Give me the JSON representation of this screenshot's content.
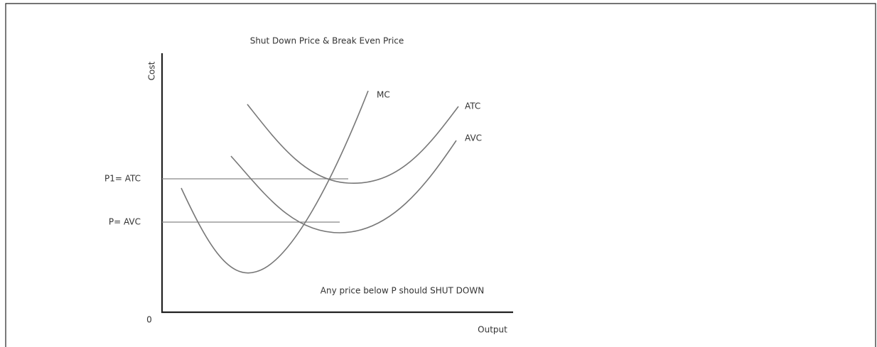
{
  "title": "Shut Down Price & Break Even Price",
  "y_axis_label": "Cost",
  "x_axis_label": "Output",
  "origin_label": "0",
  "curves": {
    "mc": "MC",
    "atc": "ATC",
    "avc": "AVC"
  },
  "price_levels": {
    "break_even": "P1= ATC",
    "shut_down": "P= AVC"
  },
  "annotation": "Any price below P should SHUT DOWN"
}
